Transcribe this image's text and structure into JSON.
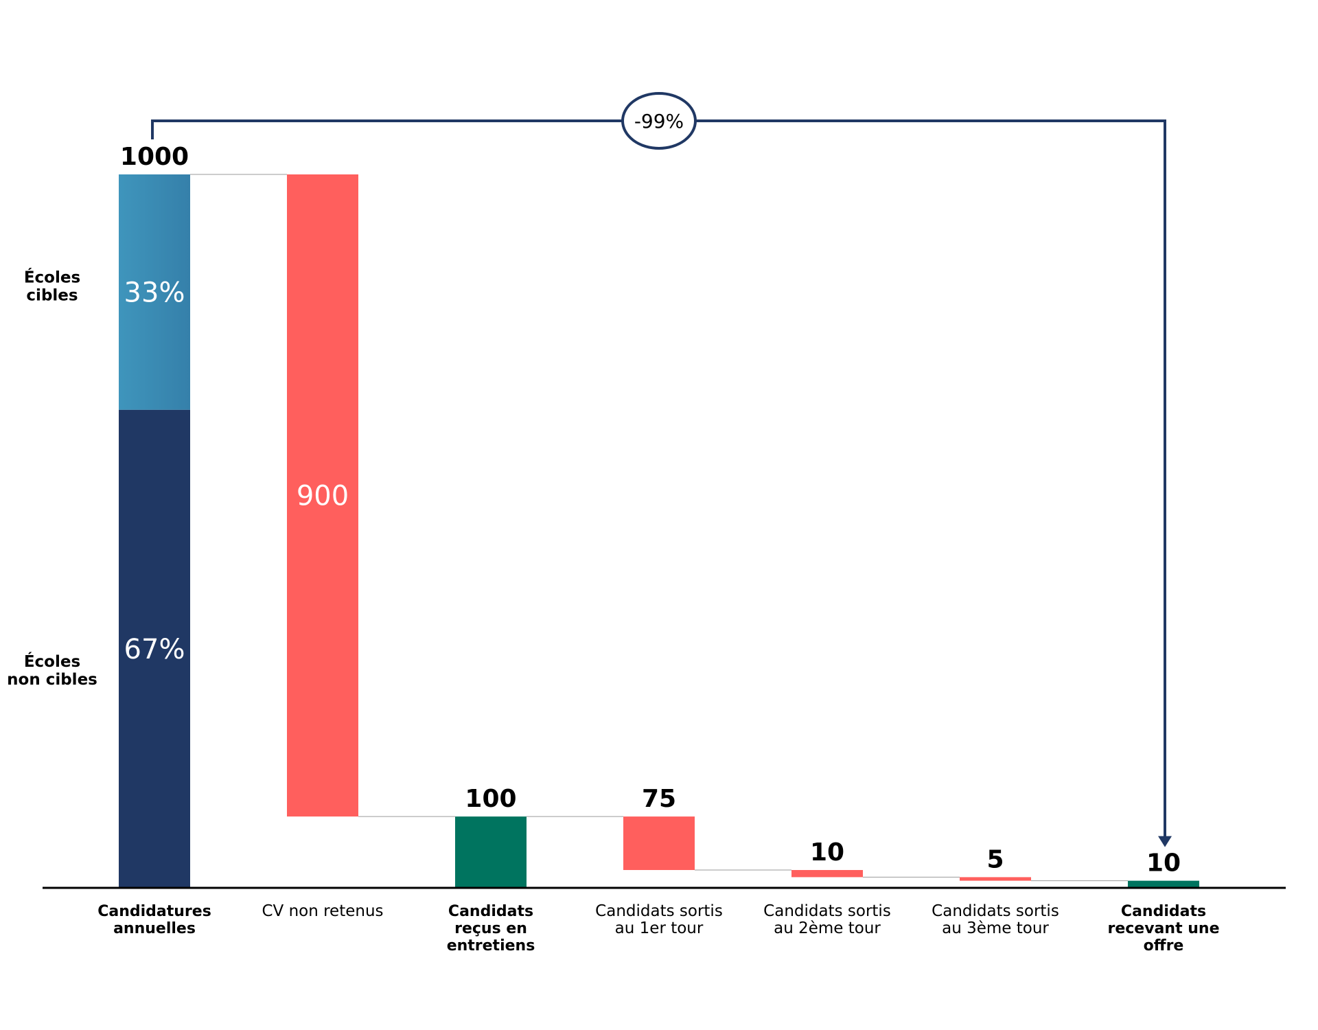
{
  "chart_data": {
    "type": "waterfall",
    "ylim": [
      0,
      1000
    ],
    "categories": [
      {
        "label": [
          "Candidatures",
          "annuelles"
        ],
        "bold": true,
        "kind": "total",
        "value": 1000,
        "value_label": "1000"
      },
      {
        "label": [
          "CV non retenus"
        ],
        "bold": false,
        "kind": "decrease",
        "value": 900,
        "value_label": "900"
      },
      {
        "label": [
          "Candidats",
          "reçus en",
          "entretiens"
        ],
        "bold": true,
        "kind": "total",
        "value": 100,
        "value_label": "100"
      },
      {
        "label": [
          "Candidats sortis",
          "au 1er tour"
        ],
        "bold": false,
        "kind": "decrease",
        "value": 75,
        "value_label": "75"
      },
      {
        "label": [
          "Candidats sortis",
          "au 2ème tour"
        ],
        "bold": false,
        "kind": "decrease",
        "value": 10,
        "value_label": "10"
      },
      {
        "label": [
          "Candidats sortis",
          "au 3ème tour"
        ],
        "bold": false,
        "kind": "decrease",
        "value": 5,
        "value_label": "5"
      },
      {
        "label": [
          "Candidats",
          "recevant une",
          "offre"
        ],
        "bold": true,
        "kind": "total",
        "value": 10,
        "value_label": "10"
      }
    ],
    "first_bar_split": [
      {
        "name": [
          "Écoles",
          "cibles"
        ],
        "share_label": "33%",
        "share": 0.33,
        "color": "#3a8fb7"
      },
      {
        "name": [
          "Écoles",
          "non cibles"
        ],
        "share_label": "67%",
        "share": 0.67,
        "color": "#203864"
      }
    ],
    "overall_change": "-99%",
    "colors": {
      "decrease": "#ff5f5d",
      "total": "#00745f",
      "top_segment": "#3a8fb7",
      "bottom_segment": "#203864",
      "arrow": "#203864"
    }
  }
}
